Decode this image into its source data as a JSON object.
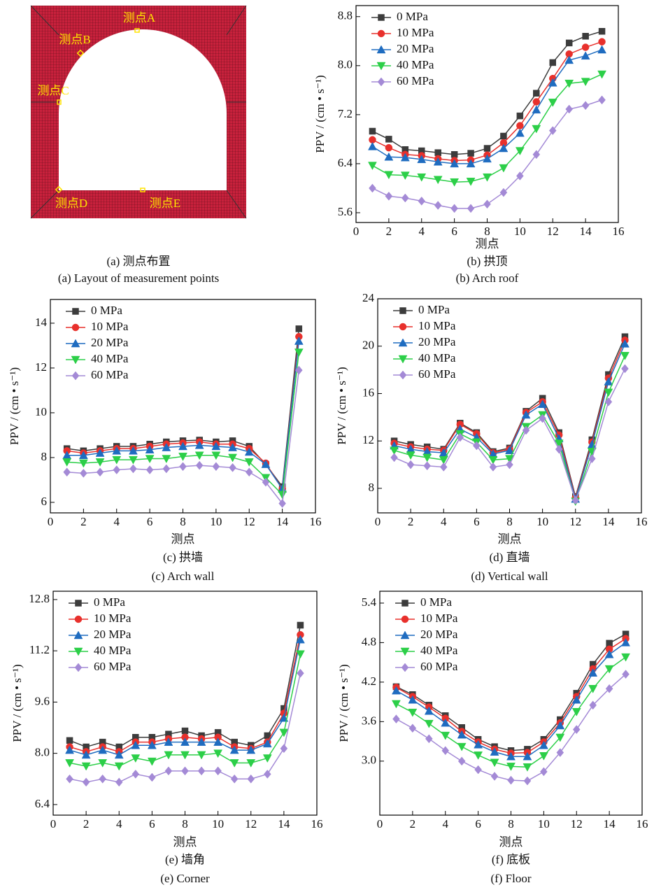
{
  "figure_a": {
    "labels": [
      "测点A",
      "测点B",
      "测点C",
      "测点D",
      "测点E"
    ],
    "caption_cn": "(a) 测点布置",
    "caption_en": "(a) Layout of measurement points"
  },
  "chart_data": [
    {
      "type": "line",
      "xlabel": "测点",
      "ylabel": "PPV / (cm • s⁻¹)",
      "caption_cn": "(b) 拱顶",
      "caption_en": "(b) Arch roof",
      "legend": "upper left",
      "x": [
        1,
        2,
        3,
        4,
        5,
        6,
        7,
        8,
        9,
        10,
        11,
        12,
        13,
        14,
        15
      ],
      "xlim": [
        0,
        16
      ],
      "xticks": [
        0,
        2,
        4,
        6,
        8,
        10,
        12,
        14,
        16
      ],
      "ylim": [
        5.44,
        8.98
      ],
      "yticks": [
        5.6,
        6.4,
        7.2,
        {
          "value": 8,
          "label": "8.0"
        },
        8.8
      ],
      "series": [
        {
          "name": "0 MPa",
          "color": "#3c3c3c",
          "marker": "square",
          "values": [
            6.93,
            6.8,
            6.63,
            6.61,
            6.58,
            6.55,
            6.57,
            6.65,
            6.85,
            7.18,
            7.55,
            8.05,
            8.37,
            8.48,
            8.56
          ]
        },
        {
          "name": "10 MPa",
          "color": "#e8302c",
          "marker": "circle",
          "values": [
            6.79,
            6.66,
            6.55,
            6.53,
            6.48,
            6.45,
            6.46,
            6.54,
            6.74,
            7.02,
            7.41,
            7.79,
            8.19,
            8.3,
            8.39
          ]
        },
        {
          "name": "20 MPa",
          "color": "#1f6cc0",
          "marker": "triangle-up",
          "values": [
            6.68,
            6.51,
            6.5,
            6.47,
            6.43,
            6.4,
            6.4,
            6.48,
            6.65,
            6.9,
            7.28,
            7.72,
            8.09,
            8.16,
            8.26
          ]
        },
        {
          "name": "40 MPa",
          "color": "#2ccf48",
          "marker": "triangle-down",
          "values": [
            6.37,
            6.22,
            6.21,
            6.18,
            6.14,
            6.1,
            6.11,
            6.18,
            6.33,
            6.61,
            6.97,
            7.4,
            7.71,
            7.74,
            7.86
          ]
        },
        {
          "name": "60 MPa",
          "color": "#a48ad6",
          "marker": "diamond",
          "values": [
            6,
            5.87,
            5.84,
            5.79,
            5.72,
            5.67,
            5.67,
            5.74,
            5.93,
            6.2,
            6.55,
            6.94,
            7.29,
            7.35,
            7.44
          ]
        }
      ]
    },
    {
      "type": "line",
      "xlabel": "测点",
      "ylabel": "PPV / (cm • s⁻¹)",
      "caption_cn": "(c) 拱墙",
      "caption_en": "(c) Arch wall",
      "legend": "upper left",
      "x": [
        1,
        2,
        3,
        4,
        5,
        6,
        7,
        8,
        9,
        10,
        11,
        12,
        13,
        14,
        15
      ],
      "xlim": [
        0,
        16
      ],
      "xticks": [
        0,
        2,
        4,
        6,
        8,
        10,
        12,
        14,
        16
      ],
      "ylim": [
        5.53,
        15.06
      ],
      "yticks": [
        6,
        8,
        10,
        12,
        14
      ],
      "series": [
        {
          "name": "0 MPa",
          "color": "#3c3c3c",
          "marker": "square",
          "values": [
            8.4,
            8.3,
            8.4,
            8.5,
            8.5,
            8.6,
            8.7,
            8.75,
            8.78,
            8.7,
            8.75,
            8.5,
            7.7,
            6.7,
            13.75
          ]
        },
        {
          "name": "10 MPa",
          "color": "#e8302c",
          "marker": "circle",
          "values": [
            8.3,
            8.2,
            8.3,
            8.4,
            8.4,
            8.5,
            8.6,
            8.65,
            8.7,
            8.6,
            8.6,
            8.4,
            7.75,
            6.6,
            13.4
          ]
        },
        {
          "name": "20 MPa",
          "color": "#1f6cc0",
          "marker": "triangle-up",
          "values": [
            8.1,
            8.1,
            8.2,
            8.3,
            8.3,
            8.35,
            8.45,
            8.5,
            8.55,
            8.5,
            8.45,
            8.25,
            7.7,
            6.6,
            13.2
          ]
        },
        {
          "name": "40 MPa",
          "color": "#2ccf48",
          "marker": "triangle-down",
          "values": [
            7.8,
            7.75,
            7.8,
            7.9,
            7.9,
            7.95,
            7.95,
            8.05,
            8.1,
            8.1,
            8,
            7.8,
            7.1,
            6.35,
            12.7
          ]
        },
        {
          "name": "60 MPa",
          "color": "#a48ad6",
          "marker": "diamond",
          "values": [
            7.35,
            7.3,
            7.35,
            7.45,
            7.5,
            7.45,
            7.5,
            7.6,
            7.65,
            7.6,
            7.55,
            7.35,
            6.9,
            5.95,
            11.9
          ]
        }
      ]
    },
    {
      "type": "line",
      "xlabel": "测点",
      "ylabel": "PPV / (cm • s⁻¹)",
      "caption_cn": "(d) 直墙",
      "caption_en": "(d) Vertical wall",
      "legend": "upper left",
      "x": [
        1,
        2,
        3,
        4,
        5,
        6,
        7,
        8,
        9,
        10,
        11,
        12,
        13,
        14,
        15
      ],
      "xlim": [
        0,
        16
      ],
      "xticks": [
        0,
        2,
        4,
        6,
        8,
        10,
        12,
        14,
        16
      ],
      "ylim": [
        5.93,
        24
      ],
      "yticks": [
        8,
        12,
        16,
        20,
        24
      ],
      "series": [
        {
          "name": "0 MPa",
          "color": "#3c3c3c",
          "marker": "square",
          "values": [
            12,
            11.7,
            11.5,
            11.3,
            13.5,
            12.7,
            11.1,
            11.4,
            14.5,
            15.6,
            12.7,
            7.3,
            12.1,
            17.6,
            20.8
          ]
        },
        {
          "name": "10 MPa",
          "color": "#e8302c",
          "marker": "circle",
          "values": [
            11.8,
            11.5,
            11.3,
            11.2,
            13.4,
            12.6,
            11,
            11.3,
            14.4,
            15.3,
            12.5,
            7.2,
            11.9,
            17.3,
            20.5
          ]
        },
        {
          "name": "20 MPa",
          "color": "#1f6cc0",
          "marker": "triangle-up",
          "values": [
            11.6,
            11.3,
            11.1,
            11,
            13,
            12.3,
            10.9,
            11.2,
            14.2,
            15.1,
            12.2,
            7.1,
            11.7,
            17,
            20.2
          ]
        },
        {
          "name": "40 MPa",
          "color": "#2ccf48",
          "marker": "triangle-down",
          "values": [
            11.2,
            10.8,
            10.6,
            10.4,
            12.6,
            11.9,
            10.4,
            10.5,
            13.2,
            14.2,
            11.8,
            6.9,
            11.1,
            16.1,
            19.2
          ]
        },
        {
          "name": "60 MPa",
          "color": "#a48ad6",
          "marker": "diamond",
          "values": [
            10.6,
            10,
            9.9,
            9.8,
            12.3,
            11.6,
            9.8,
            10,
            12.9,
            13.9,
            11.3,
            7,
            10.5,
            15.3,
            18.1
          ]
        }
      ]
    },
    {
      "type": "line",
      "xlabel": "测点",
      "ylabel": "PPV / (cm • s⁻¹)",
      "caption_cn": "(e) 墙角",
      "caption_en": "(e) Corner",
      "legend": "upper left",
      "x": [
        1,
        2,
        3,
        4,
        5,
        6,
        7,
        8,
        9,
        10,
        11,
        12,
        13,
        14,
        15
      ],
      "xlim": [
        0,
        16
      ],
      "xticks": [
        0,
        2,
        4,
        6,
        8,
        10,
        12,
        14,
        16
      ],
      "ylim": [
        6.07,
        13.06
      ],
      "yticks": [
        6.4,
        {
          "value": 8,
          "label": "8.0"
        },
        9.6,
        11.2,
        12.8
      ],
      "series": [
        {
          "name": "0 MPa",
          "color": "#3c3c3c",
          "marker": "square",
          "values": [
            8.4,
            8.2,
            8.35,
            8.2,
            8.5,
            8.5,
            8.6,
            8.7,
            8.55,
            8.65,
            8.35,
            8.25,
            8.55,
            9.4,
            12
          ]
        },
        {
          "name": "10 MPa",
          "color": "#e8302c",
          "marker": "circle",
          "values": [
            8.2,
            8.05,
            8.2,
            8.05,
            8.35,
            8.35,
            8.45,
            8.5,
            8.45,
            8.5,
            8.2,
            8.15,
            8.35,
            9.25,
            11.7
          ]
        },
        {
          "name": "20 MPa",
          "color": "#1f6cc0",
          "marker": "triangle-up",
          "values": [
            8.1,
            7.95,
            8.1,
            7.95,
            8.25,
            8.25,
            8.35,
            8.35,
            8.35,
            8.35,
            8.1,
            8.1,
            8.3,
            9.1,
            11.55
          ]
        },
        {
          "name": "40 MPa",
          "color": "#2ccf48",
          "marker": "triangle-down",
          "values": [
            7.7,
            7.6,
            7.7,
            7.6,
            7.85,
            7.75,
            7.95,
            7.95,
            7.95,
            8,
            7.7,
            7.7,
            7.85,
            8.65,
            11.1
          ]
        },
        {
          "name": "60 MPa",
          "color": "#a48ad6",
          "marker": "diamond",
          "values": [
            7.2,
            7.1,
            7.2,
            7.1,
            7.35,
            7.25,
            7.45,
            7.45,
            7.45,
            7.45,
            7.2,
            7.2,
            7.35,
            8.15,
            10.5
          ]
        }
      ]
    },
    {
      "type": "line",
      "xlabel": "测点",
      "ylabel": "PPV / (cm • s⁻¹)",
      "caption_cn": "(f) 底板",
      "caption_en": "(f) Floor",
      "legend": "upper left",
      "x": [
        1,
        2,
        3,
        4,
        5,
        6,
        7,
        8,
        9,
        10,
        11,
        12,
        13,
        14,
        15
      ],
      "xlim": [
        0,
        16
      ],
      "xticks": [
        0,
        2,
        4,
        6,
        8,
        10,
        12,
        14,
        16
      ],
      "ylim": [
        2.18,
        5.58
      ],
      "yticks": [
        {
          "value": 3,
          "label": "3.0"
        },
        3.6,
        4.2,
        4.8,
        5.4
      ],
      "series": [
        {
          "name": "0 MPa",
          "color": "#3c3c3c",
          "marker": "square",
          "values": [
            4.13,
            4.01,
            3.85,
            3.69,
            3.51,
            3.33,
            3.22,
            3.16,
            3.18,
            3.33,
            3.63,
            4.03,
            4.47,
            4.79,
            4.93
          ]
        },
        {
          "name": "10 MPa",
          "color": "#e8302c",
          "marker": "circle",
          "values": [
            4.12,
            3.98,
            3.82,
            3.65,
            3.45,
            3.29,
            3.18,
            3.12,
            3.13,
            3.29,
            3.58,
            3.98,
            4.4,
            4.7,
            4.86
          ]
        },
        {
          "name": "20 MPa",
          "color": "#1f6cc0",
          "marker": "triangle-up",
          "values": [
            4.07,
            3.93,
            3.76,
            3.58,
            3.4,
            3.25,
            3.14,
            3.07,
            3.07,
            3.24,
            3.54,
            3.93,
            4.34,
            4.62,
            4.8
          ]
        },
        {
          "name": "40 MPa",
          "color": "#2ccf48",
          "marker": "triangle-down",
          "values": [
            3.87,
            3.74,
            3.57,
            3.39,
            3.22,
            3.09,
            2.98,
            2.92,
            2.91,
            3.08,
            3.36,
            3.75,
            4.1,
            4.4,
            4.58
          ]
        },
        {
          "name": "60 MPa",
          "color": "#a48ad6",
          "marker": "diamond",
          "values": [
            3.64,
            3.5,
            3.34,
            3.16,
            3,
            2.87,
            2.77,
            2.71,
            2.7,
            2.84,
            3.13,
            3.48,
            3.85,
            4.1,
            4.32
          ]
        }
      ]
    }
  ]
}
